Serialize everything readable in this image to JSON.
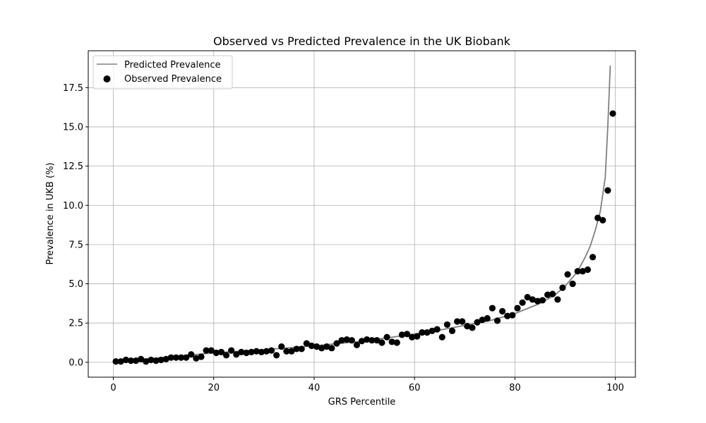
{
  "chart_data": {
    "type": "scatter+line",
    "title": "Observed vs Predicted Prevalence in the UK Biobank",
    "xlabel": "GRS Percentile",
    "ylabel": "Prevalence in UKB (%)",
    "xlim": [
      -5,
      104
    ],
    "ylim": [
      -0.95,
      19.85
    ],
    "xticks": [
      0,
      20,
      40,
      60,
      80,
      100
    ],
    "yticks": [
      0.0,
      2.5,
      5.0,
      7.5,
      10.0,
      12.5,
      15.0,
      17.5
    ],
    "ytick_labels": [
      "0.0",
      "2.5",
      "5.0",
      "7.5",
      "10.0",
      "12.5",
      "15.0",
      "17.5"
    ],
    "grid": true,
    "legend": {
      "position": "upper-left",
      "entries": [
        "Predicted Prevalence",
        "Observed Prevalence"
      ]
    },
    "colors": {
      "predicted": "#808080",
      "observed": "#000000",
      "grid": "#b0b0b0"
    },
    "predicted": {
      "name": "Predicted Prevalence",
      "x": [
        0,
        10,
        20,
        30,
        40,
        50,
        60,
        65,
        70,
        75,
        80,
        85,
        88,
        90,
        92,
        93,
        94,
        95,
        96,
        97,
        98,
        98.5,
        99
      ],
      "y": [
        0.05,
        0.3,
        0.6,
        0.8,
        1.05,
        1.35,
        1.8,
        2.05,
        2.35,
        2.65,
        3.1,
        3.75,
        4.3,
        4.85,
        5.6,
        6.1,
        6.7,
        7.4,
        8.4,
        9.6,
        11.8,
        15.0,
        18.9
      ]
    },
    "observed": {
      "name": "Observed Prevalence",
      "x": [
        0.5,
        1.5,
        2.5,
        3.5,
        4.5,
        5.5,
        6.5,
        7.5,
        8.5,
        9.5,
        10.5,
        11.5,
        12.5,
        13.5,
        14.5,
        15.5,
        16.5,
        17.5,
        18.5,
        19.5,
        20.5,
        21.5,
        22.5,
        23.5,
        24.5,
        25.5,
        26.5,
        27.5,
        28.5,
        29.5,
        30.5,
        31.5,
        32.5,
        33.5,
        34.5,
        35.5,
        36.5,
        37.5,
        38.5,
        39.5,
        40.5,
        41.5,
        42.5,
        43.5,
        44.5,
        45.5,
        46.5,
        47.5,
        48.5,
        49.5,
        50.5,
        51.5,
        52.5,
        53.5,
        54.5,
        55.5,
        56.5,
        57.5,
        58.5,
        59.5,
        60.5,
        61.5,
        62.5,
        63.5,
        64.5,
        65.5,
        66.5,
        67.5,
        68.5,
        69.5,
        70.5,
        71.5,
        72.5,
        73.5,
        74.5,
        75.5,
        76.5,
        77.5,
        78.5,
        79.5,
        80.5,
        81.5,
        82.5,
        83.5,
        84.5,
        85.5,
        86.5,
        87.5,
        88.5,
        89.5,
        90.5,
        91.5,
        92.5,
        93.5,
        94.5,
        95.5,
        96.5,
        97.5,
        98.5,
        99.5
      ],
      "y": [
        0.05,
        0.05,
        0.15,
        0.1,
        0.1,
        0.2,
        0.05,
        0.15,
        0.1,
        0.15,
        0.2,
        0.3,
        0.3,
        0.3,
        0.3,
        0.5,
        0.25,
        0.35,
        0.75,
        0.75,
        0.6,
        0.65,
        0.45,
        0.75,
        0.5,
        0.65,
        0.6,
        0.65,
        0.7,
        0.65,
        0.7,
        0.75,
        0.45,
        1.0,
        0.7,
        0.7,
        0.85,
        0.85,
        1.2,
        1.05,
        1.0,
        0.9,
        1.0,
        0.9,
        1.2,
        1.4,
        1.45,
        1.4,
        1.1,
        1.35,
        1.45,
        1.4,
        1.4,
        1.25,
        1.6,
        1.3,
        1.25,
        1.75,
        1.8,
        1.6,
        1.65,
        1.9,
        1.9,
        2.0,
        2.1,
        1.6,
        2.4,
        2.0,
        2.6,
        2.6,
        2.3,
        2.2,
        2.55,
        2.7,
        2.8,
        3.45,
        2.65,
        3.25,
        2.95,
        3.0,
        3.45,
        3.8,
        4.15,
        4.0,
        3.9,
        3.95,
        4.3,
        4.35,
        4.0,
        4.75,
        5.6,
        5.0,
        5.8,
        5.8,
        5.9,
        6.7,
        9.2,
        9.05,
        10.95,
        15.85
      ]
    }
  }
}
